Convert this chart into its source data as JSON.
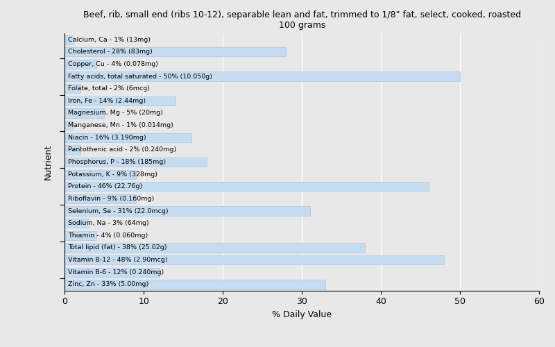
{
  "title": "Beef, rib, small end (ribs 10-12), separable lean and fat, trimmed to 1/8\" fat, select, cooked, roasted\n100 grams",
  "xlabel": "% Daily Value",
  "ylabel": "Nutrient",
  "background_color": "#e8e8e8",
  "plot_bg_color": "#e8e8e8",
  "bar_color": "#c5dcf0",
  "bar_edge_color": "#a0c0e0",
  "xlim": [
    0,
    60
  ],
  "xticks": [
    0,
    10,
    20,
    30,
    40,
    50,
    60
  ],
  "nutrients": [
    {
      "label": "Calcium, Ca - 1% (13mg)",
      "value": 1
    },
    {
      "label": "Cholesterol - 28% (83mg)",
      "value": 28
    },
    {
      "label": "Copper, Cu - 4% (0.078mg)",
      "value": 4
    },
    {
      "label": "Fatty acids, total saturated - 50% (10.050g)",
      "value": 50
    },
    {
      "label": "Folate, total - 2% (6mcg)",
      "value": 2
    },
    {
      "label": "Iron, Fe - 14% (2.44mg)",
      "value": 14
    },
    {
      "label": "Magnesium, Mg - 5% (20mg)",
      "value": 5
    },
    {
      "label": "Manganese, Mn - 1% (0.014mg)",
      "value": 1
    },
    {
      "label": "Niacin - 16% (3.190mg)",
      "value": 16
    },
    {
      "label": "Pantothenic acid - 2% (0.240mg)",
      "value": 2
    },
    {
      "label": "Phosphorus, P - 18% (185mg)",
      "value": 18
    },
    {
      "label": "Potassium, K - 9% (328mg)",
      "value": 9
    },
    {
      "label": "Protein - 46% (22.76g)",
      "value": 46
    },
    {
      "label": "Riboflavin - 9% (0.160mg)",
      "value": 9
    },
    {
      "label": "Selenium, Se - 31% (22.0mcg)",
      "value": 31
    },
    {
      "label": "Sodium, Na - 3% (64mg)",
      "value": 3
    },
    {
      "label": "Thiamin - 4% (0.060mg)",
      "value": 4
    },
    {
      "label": "Total lipid (fat) - 38% (25.02g)",
      "value": 38
    },
    {
      "label": "Vitamin B-12 - 48% (2.90mcg)",
      "value": 48
    },
    {
      "label": "Vitamin B-6 - 12% (0.240mg)",
      "value": 12
    },
    {
      "label": "Zinc, Zn - 33% (5.00mg)",
      "value": 33
    }
  ]
}
